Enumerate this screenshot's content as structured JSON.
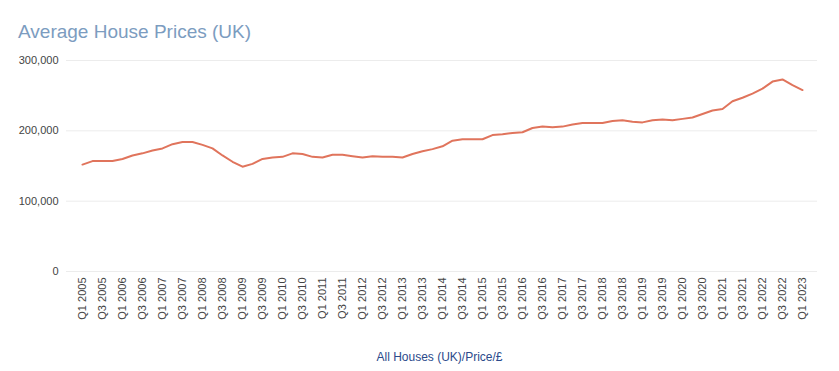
{
  "chart_data": {
    "type": "line",
    "title": "Average House Prices (UK)",
    "x_label": "All Houses (UK)/Price/£",
    "categories": [
      "Q1 2005",
      null,
      "Q3 2005",
      null,
      "Q1 2006",
      null,
      "Q3 2006",
      null,
      "Q1 2007",
      null,
      "Q3 2007",
      null,
      "Q1 2008",
      null,
      "Q3 2008",
      null,
      "Q1 2009",
      null,
      "Q3 2009",
      null,
      "Q1 2010",
      null,
      "Q3 2010",
      null,
      "Q1 2011",
      null,
      "Q3 2011",
      null,
      "Q1 2012",
      null,
      "Q3 2012",
      null,
      "Q1 2013",
      null,
      "Q3 2013",
      null,
      "Q1 2014",
      null,
      "Q3 2014",
      null,
      "Q1 2015",
      null,
      "Q3 2015",
      null,
      "Q1 2016",
      null,
      "Q3 2016",
      null,
      "Q1 2017",
      null,
      "Q3 2017",
      null,
      "Q1 2018",
      null,
      "Q3 2018",
      null,
      "Q1 2019",
      null,
      "Q3 2019",
      null,
      "Q1 2020",
      null,
      "Q3 2020",
      null,
      "Q1 2021",
      null,
      "Q3 2021",
      null,
      "Q1 2022",
      null,
      "Q3 2022",
      null,
      "Q1 2023"
    ],
    "values": [
      152000,
      157000,
      157000,
      157000,
      160000,
      165000,
      168000,
      172000,
      175000,
      181000,
      184000,
      184000,
      180000,
      175000,
      165000,
      156000,
      149000,
      153000,
      160000,
      162000,
      163000,
      168000,
      167000,
      163000,
      162000,
      166000,
      166000,
      164000,
      162000,
      164000,
      163000,
      163000,
      162000,
      167000,
      171000,
      174000,
      178000,
      186000,
      188000,
      188000,
      188000,
      194000,
      195000,
      197000,
      198000,
      204000,
      206000,
      205000,
      206000,
      209000,
      211000,
      211000,
      211000,
      214000,
      215000,
      213000,
      212000,
      215000,
      216000,
      215000,
      217000,
      219000,
      224000,
      229000,
      231000,
      242000,
      247000,
      253000,
      260000,
      270000,
      273000,
      265000,
      258000
    ],
    "color": "#e0745c",
    "ylim": [
      0,
      300000
    ],
    "yticks": [
      0,
      {
        "value": 100000,
        "label": "100,000"
      },
      {
        "value": 200000,
        "label": "200,000"
      },
      {
        "value": 300000,
        "label": "300,000"
      }
    ],
    "grid": true
  }
}
